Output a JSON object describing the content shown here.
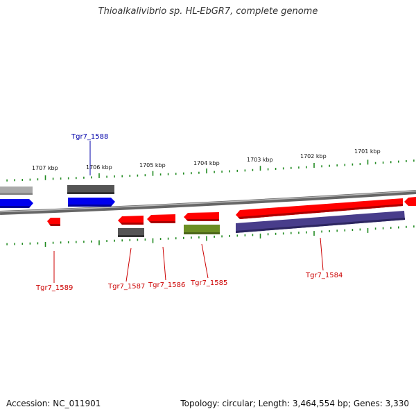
{
  "title": "Thioalkalivibrio sp. HL-EbGR7, complete genome",
  "footer": {
    "accession": "Accession: NC_011901",
    "summary": "Topology: circular; Length: 3,464,554 bp; Genes: 3,330"
  },
  "colors": {
    "red": "#ff0000",
    "blue": "#0000ee",
    "dark_gray": "#555555",
    "light_gray": "#aaaaaa",
    "olive": "#6b8e23",
    "slate": "#483d8b",
    "backbone": "#888888",
    "tick": "#228b22",
    "label_red": "#cc0000",
    "label_blue": "#0000aa"
  },
  "ticks": [
    {
      "label": "1707 kbp"
    },
    {
      "label": "1706 kbp"
    },
    {
      "label": "1705 kbp"
    },
    {
      "label": "1704 kbp"
    },
    {
      "label": "1703 kbp"
    },
    {
      "label": "1702 kbp"
    },
    {
      "label": "1701 kbp"
    }
  ],
  "gene_labels": [
    {
      "name": "Tgr7_1588",
      "color": "blue"
    },
    {
      "name": "Tgr7_1589",
      "color": "red"
    },
    {
      "name": "Tgr7_1587",
      "color": "red"
    },
    {
      "name": "Tgr7_1586",
      "color": "red"
    },
    {
      "name": "Tgr7_1585",
      "color": "red"
    },
    {
      "name": "Tgr7_1584",
      "color": "red"
    }
  ]
}
